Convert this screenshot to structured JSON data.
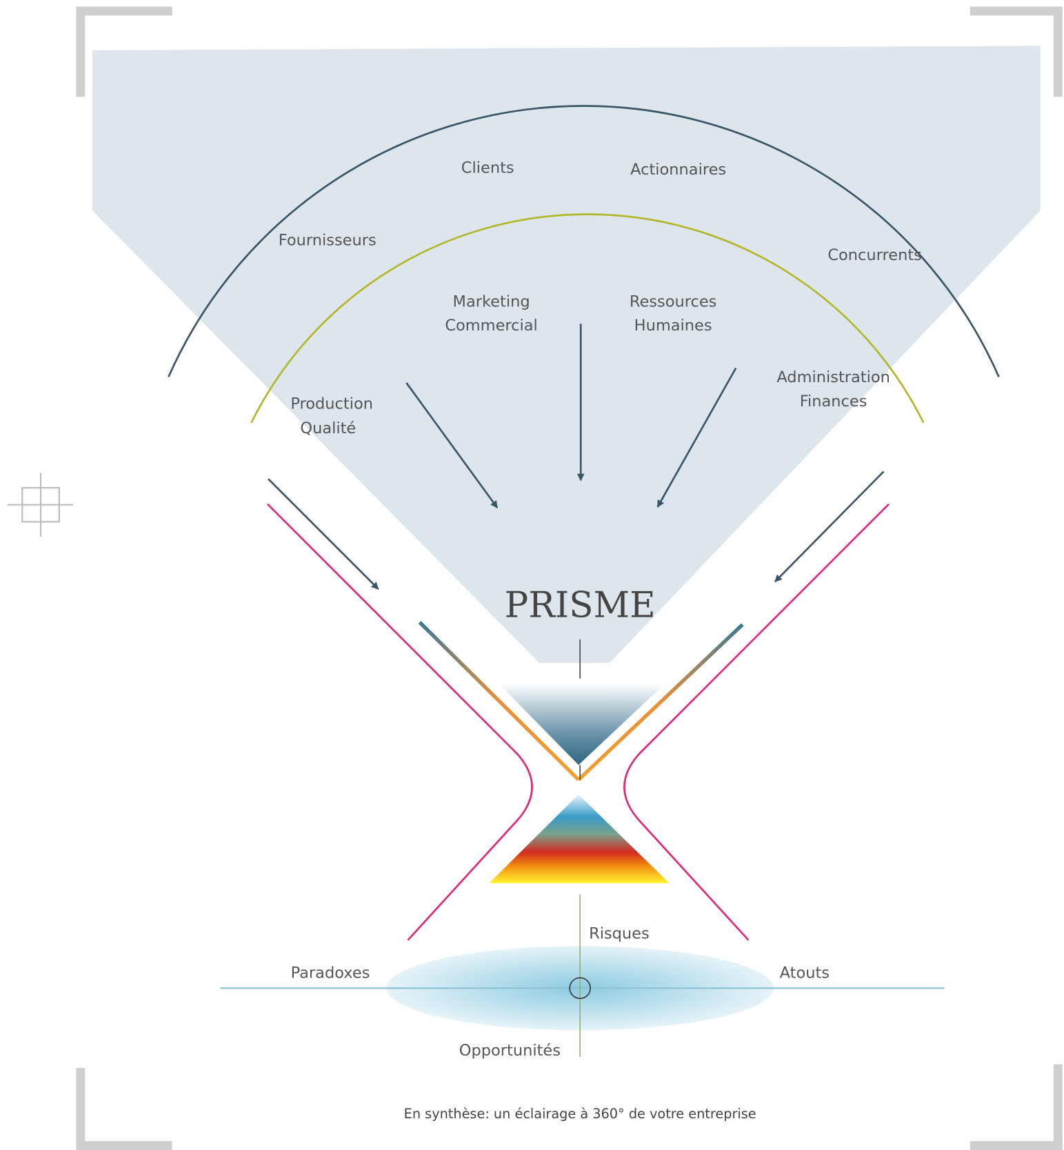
{
  "outer_ring": [
    "Fournisseurs",
    "Clients",
    "Actionnaires",
    "Concurrents"
  ],
  "inner_ring": [
    [
      "Production",
      "Qualité"
    ],
    [
      "Marketing",
      "Commercial"
    ],
    [
      "Ressources",
      "Humaines"
    ],
    [
      "Administration",
      "Finances"
    ]
  ],
  "center": "PRISME",
  "outcomes": {
    "top": "Risques",
    "left": "Paradoxes",
    "right": "Atouts",
    "bottom": "Opportunités"
  },
  "caption": "En synthèse: un éclairage à 360° de votre entreprise"
}
